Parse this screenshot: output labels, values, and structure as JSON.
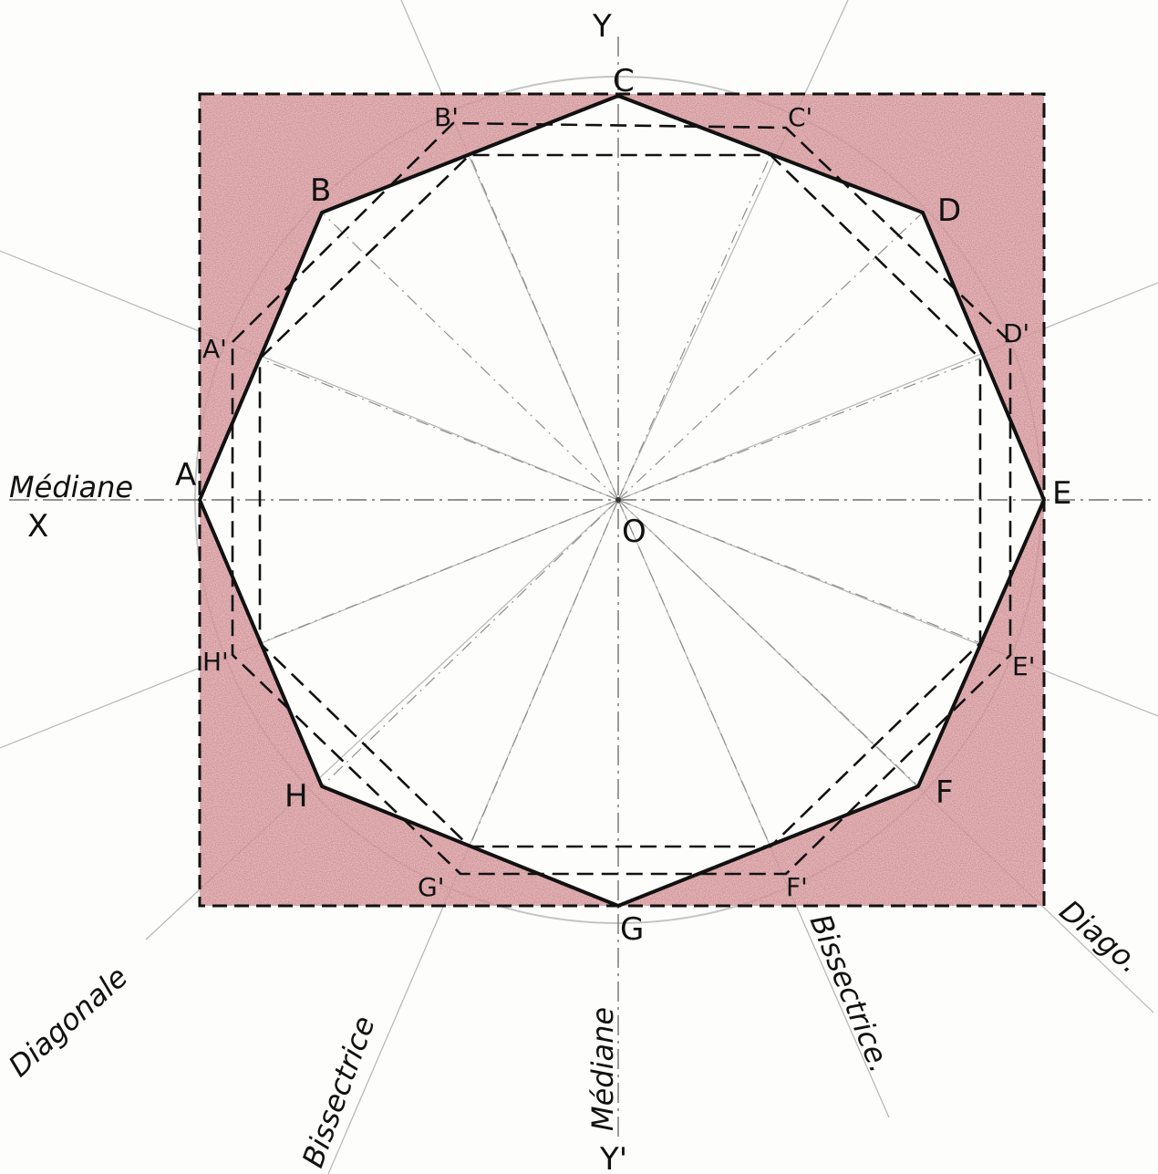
{
  "vertices": {
    "A": "A",
    "B": "B",
    "C": "C",
    "D": "D",
    "E": "E",
    "F": "F",
    "G": "G",
    "H": "H"
  },
  "primed": {
    "A_p": "A'",
    "B_p": "B'",
    "C_p": "C'",
    "D_p": "D'",
    "E_p": "E'",
    "F_p": "F'",
    "G_p": "G'",
    "H_p": "H'"
  },
  "center": "O",
  "axes": {
    "x": "X",
    "y": "Y",
    "y_prime": "Y'"
  },
  "words": {
    "mediane_left": "Médiane",
    "mediane_bottom": "Médiane",
    "diagonale_left": "Diagonale",
    "diago_right": "Diago.",
    "bissectrice_left": "Bissectrice",
    "bissectrice_right": "Bissectrice."
  },
  "colors": {
    "fill": "#c0394a",
    "outline": "#111111",
    "guide": "#9a9a9a"
  }
}
